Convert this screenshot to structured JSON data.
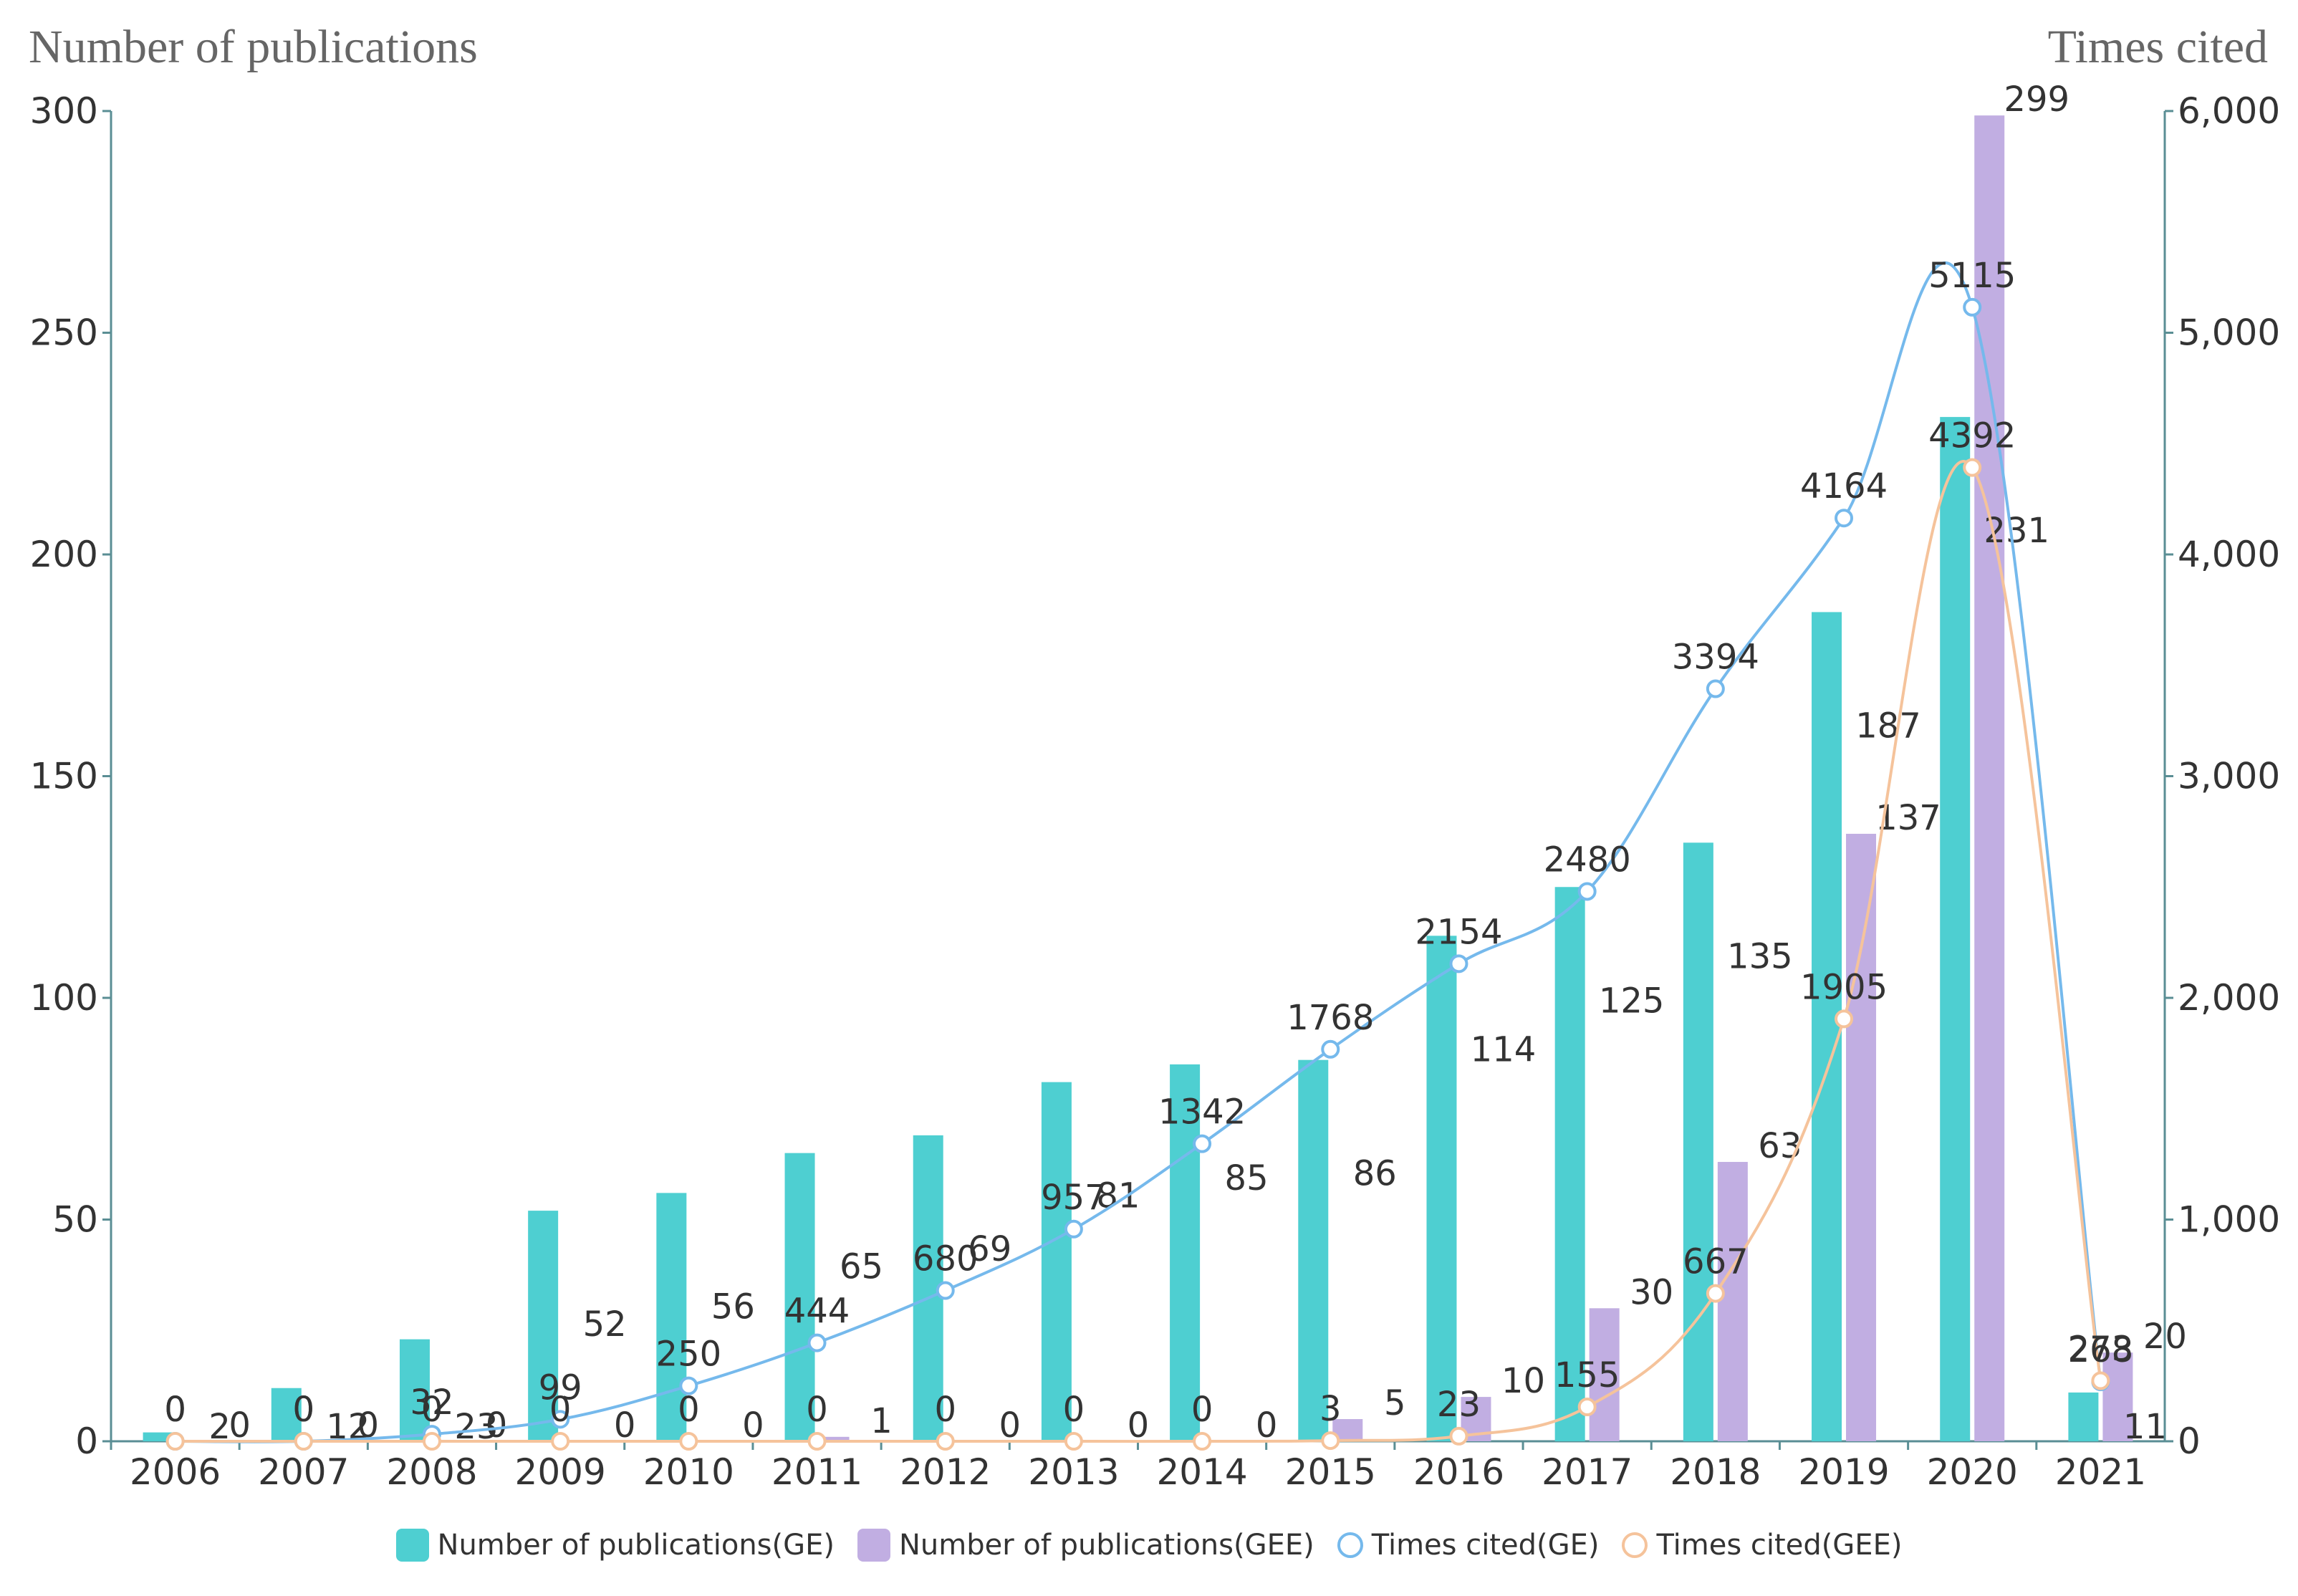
{
  "chart_data": {
    "type": "bar",
    "categories": [
      "2006",
      "2007",
      "2008",
      "2009",
      "2010",
      "2011",
      "2012",
      "2013",
      "2014",
      "2015",
      "2016",
      "2017",
      "2018",
      "2019",
      "2020",
      "2021"
    ],
    "left_axis": {
      "title": "Number of publications",
      "range": [
        0,
        300
      ],
      "ticks": [
        "0",
        "50",
        "100",
        "150",
        "200",
        "250",
        "300"
      ]
    },
    "right_axis": {
      "title": "Times cited",
      "range": [
        0,
        6000
      ],
      "ticks": [
        "0",
        "1,000",
        "2,000",
        "3,000",
        "4,000",
        "5,000",
        "6,000"
      ]
    },
    "series": [
      {
        "name": "Number of publications(GE)",
        "type": "bar",
        "axis": "left",
        "color": "#4ECFD1",
        "values": [
          2,
          12,
          23,
          52,
          56,
          65,
          69,
          81,
          85,
          86,
          114,
          125,
          135,
          187,
          231,
          11
        ]
      },
      {
        "name": "Number of publications(GEE)",
        "type": "bar",
        "axis": "left",
        "color": "#C1AEE2",
        "values": [
          0,
          0,
          0,
          0,
          0,
          1,
          0,
          0,
          0,
          5,
          10,
          30,
          63,
          137,
          299,
          20
        ]
      },
      {
        "name": "Times cited(GE)",
        "type": "line",
        "axis": "right",
        "color": "#75B9EC",
        "values": [
          0,
          0,
          32,
          99,
          250,
          444,
          680,
          957,
          1342,
          1768,
          2154,
          2480,
          3394,
          4164,
          5115,
          268
        ]
      },
      {
        "name": "Times cited(GEE)",
        "type": "line",
        "axis": "right",
        "color": "#F5C39B",
        "values": [
          0,
          0,
          0,
          0,
          0,
          0,
          0,
          0,
          0,
          3,
          23,
          155,
          667,
          1905,
          4392,
          273
        ]
      }
    ],
    "legend_position": "bottom-center",
    "grid": false
  }
}
